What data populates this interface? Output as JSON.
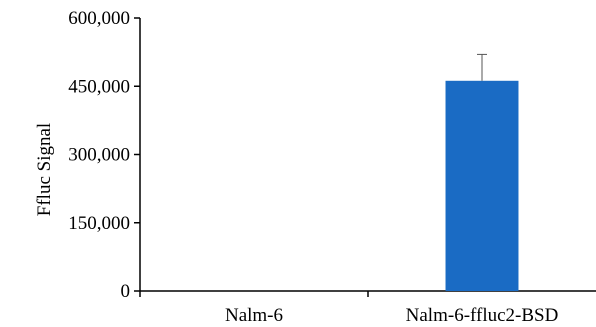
{
  "chart_data": {
    "type": "bar",
    "title": "",
    "xlabel": "",
    "ylabel": "Ffluc Signal",
    "categories": [
      "Nalm-6",
      "Nalm-6-ffluc2-BSD"
    ],
    "values": [
      0,
      462000
    ],
    "error_plus": [
      0,
      58000
    ],
    "ylim": [
      0,
      600000
    ],
    "yticks": [
      0,
      150000,
      300000,
      450000,
      600000
    ],
    "ytick_labels": [
      "0",
      "150,000",
      "300,000",
      "450,000",
      "600,000"
    ],
    "bar_color": "#1a6bc4",
    "grid": false,
    "legend": "none"
  }
}
